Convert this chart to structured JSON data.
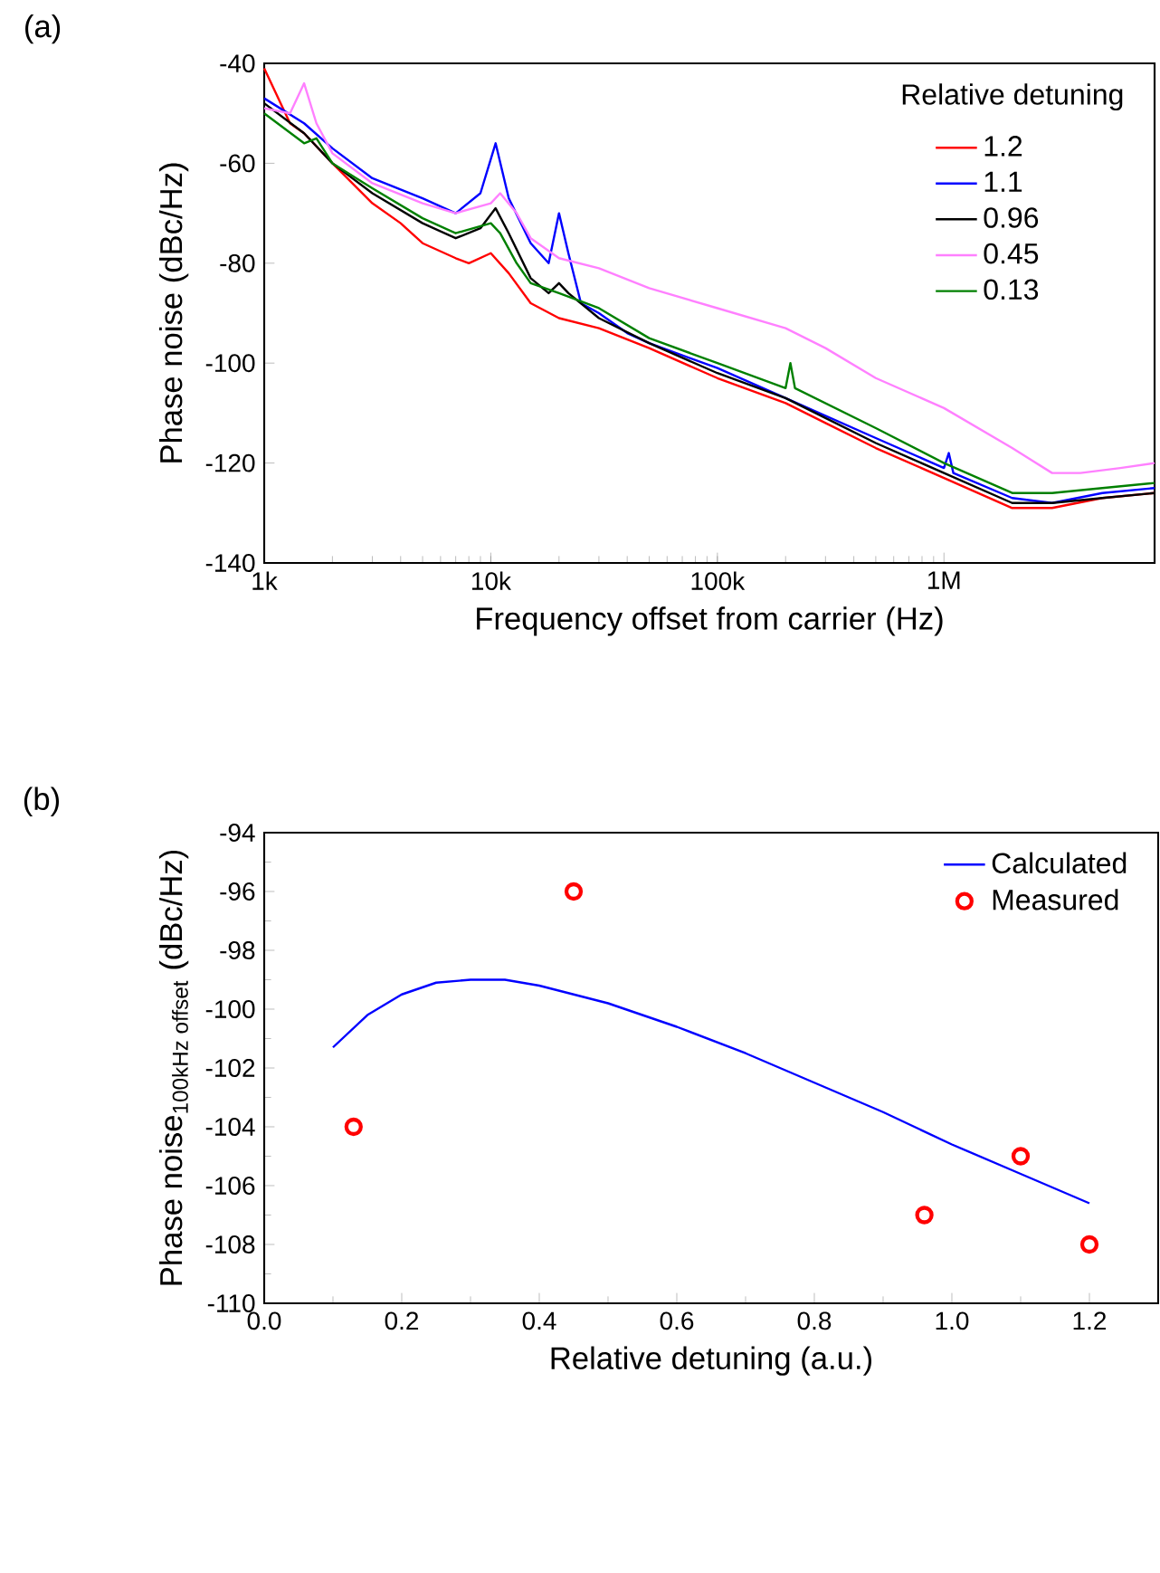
{
  "chart_data": [
    {
      "type": "line",
      "annotations": [
        "(a)"
      ],
      "xlabel": "Frequency offset from carrier (Hz)",
      "ylabel": "Phase noise (dBc/Hz)",
      "legend_title": "Relative detuning",
      "legend": "top right",
      "log": "x",
      "xlim": [
        1000,
        8500000
      ],
      "xticks": [
        {
          "value": 1000,
          "label": "1k"
        },
        {
          "value": 10000,
          "label": "10k"
        },
        {
          "value": 100000,
          "label": "100k"
        },
        {
          "value": 1000000,
          "label": "1M"
        }
      ],
      "ylim": [
        -140,
        -40
      ],
      "yticks": [
        -140,
        -120,
        -100,
        -80,
        -60,
        -40
      ],
      "series": [
        {
          "name": "1.2",
          "color": "#ff0000",
          "x": [
            1000,
            1300,
            1500,
            2000,
            3000,
            4000,
            5000,
            7000,
            8000,
            10000,
            12000,
            15000,
            20000,
            30000,
            50000,
            100000,
            200000,
            300000,
            500000,
            1000000,
            2000000,
            3000000,
            5000000,
            8500000
          ],
          "values": [
            -41,
            -52,
            -54,
            -60,
            -68,
            -72,
            -76,
            -79,
            -80,
            -78,
            -82,
            -88,
            -91,
            -93,
            -97,
            -103,
            -108,
            -112,
            -117,
            -123,
            -129,
            -129,
            -127,
            -126
          ]
        },
        {
          "name": "1.1",
          "color": "#0000ff",
          "x": [
            1000,
            1500,
            2000,
            3000,
            5000,
            7000,
            9000,
            10500,
            12000,
            15000,
            18000,
            20000,
            22000,
            25000,
            30000,
            40000,
            50000,
            100000,
            200000,
            500000,
            1000000,
            1050000,
            1100000,
            2000000,
            3000000,
            5000000,
            8500000
          ],
          "values": [
            -47,
            -52,
            -57,
            -63,
            -67,
            -70,
            -66,
            -56,
            -67,
            -76,
            -80,
            -70,
            -78,
            -88,
            -90,
            -94,
            -96,
            -101,
            -107,
            -115,
            -121,
            -118,
            -122,
            -127,
            -128,
            -126,
            -125
          ]
        },
        {
          "name": "0.96",
          "color": "#000000",
          "x": [
            1000,
            1500,
            2000,
            3000,
            5000,
            7000,
            9000,
            10500,
            12000,
            15000,
            18000,
            20000,
            22000,
            30000,
            50000,
            100000,
            200000,
            300000,
            500000,
            1000000,
            2000000,
            3000000,
            5000000,
            8500000
          ],
          "values": [
            -48,
            -54,
            -60,
            -66,
            -72,
            -75,
            -73,
            -69,
            -74,
            -83,
            -86,
            -84,
            -86,
            -91,
            -96,
            -102,
            -107,
            -111,
            -116,
            -122,
            -128,
            -128,
            -127,
            -126
          ]
        },
        {
          "name": "0.45",
          "color": "#ff80ff",
          "x": [
            1000,
            1300,
            1500,
            1700,
            2000,
            3000,
            5000,
            7000,
            10000,
            11000,
            13000,
            15000,
            20000,
            30000,
            50000,
            100000,
            200000,
            300000,
            500000,
            1000000,
            2000000,
            3000000,
            4000000,
            6000000,
            8500000
          ],
          "values": [
            -49,
            -50,
            -44,
            -52,
            -58,
            -64,
            -68,
            -70,
            -68,
            -66,
            -70,
            -75,
            -79,
            -81,
            -85,
            -89,
            -93,
            -97,
            -103,
            -109,
            -117,
            -122,
            -122,
            -121,
            -120
          ]
        },
        {
          "name": "0.13",
          "color": "#008000",
          "x": [
            1000,
            1500,
            1700,
            2000,
            3000,
            5000,
            7000,
            10000,
            11000,
            13000,
            15000,
            20000,
            30000,
            50000,
            100000,
            200000,
            210000,
            220000,
            500000,
            1000000,
            2000000,
            3000000,
            5000000,
            8500000
          ],
          "values": [
            -50,
            -56,
            -55,
            -60,
            -65,
            -71,
            -74,
            -72,
            -74,
            -80,
            -84,
            -86,
            -89,
            -95,
            -100,
            -105,
            -100,
            -105,
            -113,
            -120,
            -126,
            -126,
            -125,
            -124
          ]
        }
      ]
    },
    {
      "type": "line",
      "annotations": [
        "(b)"
      ],
      "xlabel": "Relative detuning (a.u.)",
      "ylabel": "\\text{Phase noise}_{\\text{100kHz offset}}\\text{ (dBc/Hz)}",
      "legend": "top right",
      "xlim": [
        0,
        1.3
      ],
      "xticks": [
        {
          "value": 0,
          "label": "0.0"
        },
        0.2,
        0.4,
        0.6,
        0.8,
        {
          "value": 1,
          "label": "1.0"
        },
        1.2
      ],
      "ylim": [
        -110,
        -94
      ],
      "yticks": [
        -110,
        -108,
        -106,
        -104,
        -102,
        -100,
        -98,
        -96,
        -94
      ],
      "series": [
        {
          "name": "Calculated",
          "type": "line",
          "color": "#0000ff",
          "x": [
            0.1,
            0.15,
            0.2,
            0.25,
            0.3,
            0.35,
            0.4,
            0.5,
            0.6,
            0.7,
            0.8,
            0.9,
            1.0,
            1.1,
            1.2
          ],
          "values": [
            -101.3,
            -100.2,
            -99.5,
            -99.1,
            -99.0,
            -99.0,
            -99.2,
            -99.8,
            -100.6,
            -101.5,
            -102.5,
            -103.5,
            -104.6,
            -105.6,
            -106.6
          ]
        },
        {
          "name": "Measured",
          "type": "scatter",
          "marker": "circle",
          "color": "#ff0000",
          "x": [
            0.13,
            0.45,
            0.96,
            1.1,
            1.2
          ],
          "values": [
            -104,
            -96,
            -107,
            -105,
            -108
          ]
        }
      ]
    }
  ]
}
